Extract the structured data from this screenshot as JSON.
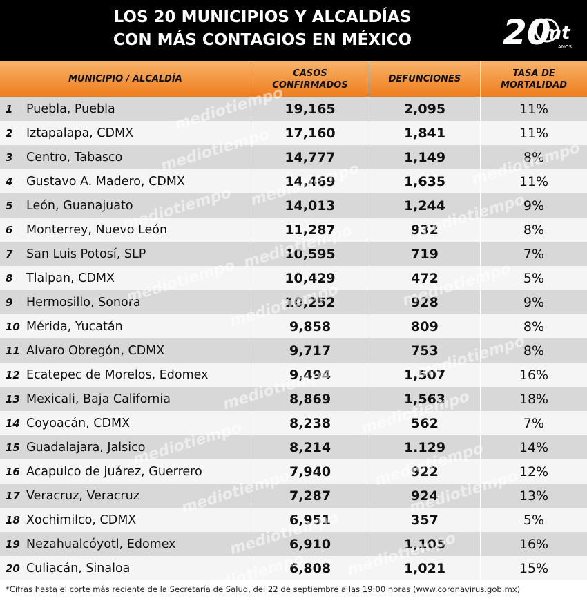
{
  "header": {
    "title_line1": "LOS 20 MUNICIPIOS Y ALCALDÍAS",
    "title_line2": "CON MÁS CONTAGIOS EN MÉXICO",
    "logo_text": "20",
    "logo_brand": "mt",
    "logo_sub": "AÑOS"
  },
  "watermark": "mediotiempo",
  "footnote": "*Cifras hasta el corte más reciente de la Secretaría de Salud, del 22 de septiembre a las 19:00 horas (www.coronavirus.gob.mx)",
  "chart_data": {
    "type": "table",
    "columns": [
      "MUNICIPIO / ALCALDÍA",
      "CASOS\nCONFIRMADOS",
      "DEFUNCIONES",
      "TASA DE\nMORTALIDAD"
    ],
    "rows": [
      {
        "rank": "1",
        "name": "Puebla, Puebla",
        "cases": "19,165",
        "deaths": "2,095",
        "rate": "11%"
      },
      {
        "rank": "2",
        "name": "Iztapalapa, CDMX",
        "cases": "17,160",
        "deaths": "1,841",
        "rate": "11%"
      },
      {
        "rank": "3",
        "name": "Centro, Tabasco",
        "cases": "14,777",
        "deaths": "1,149",
        "rate": "8%"
      },
      {
        "rank": "4",
        "name": "Gustavo A. Madero, CDMX",
        "cases": "14,469",
        "deaths": "1,635",
        "rate": "11%"
      },
      {
        "rank": "5",
        "name": "León, Guanajuato",
        "cases": "14,013",
        "deaths": "1,244",
        "rate": "9%"
      },
      {
        "rank": "6",
        "name": "Monterrey, Nuevo León",
        "cases": "11,287",
        "deaths": "932",
        "rate": "8%"
      },
      {
        "rank": "7",
        "name": "San Luis Potosí, SLP",
        "cases": "10,595",
        "deaths": "719",
        "rate": "7%"
      },
      {
        "rank": "8",
        "name": "Tlalpan, CDMX",
        "cases": "10,429",
        "deaths": "472",
        "rate": "5%"
      },
      {
        "rank": "9",
        "name": "Hermosillo, Sonora",
        "cases": "10,252",
        "deaths": "928",
        "rate": "9%"
      },
      {
        "rank": "10",
        "name": "Mérida, Yucatán",
        "cases": "9,858",
        "deaths": "809",
        "rate": "8%"
      },
      {
        "rank": "11",
        "name": "Alvaro Obregón, CDMX",
        "cases": "9,717",
        "deaths": "753",
        "rate": "8%"
      },
      {
        "rank": "12",
        "name": "Ecatepec de Morelos, Edomex",
        "cases": "9,494",
        "deaths": "1,507",
        "rate": "16%"
      },
      {
        "rank": "13",
        "name": "Mexicali, Baja California",
        "cases": "8,869",
        "deaths": "1,563",
        "rate": "18%"
      },
      {
        "rank": "14",
        "name": "Coyoacán, CDMX",
        "cases": "8,238",
        "deaths": "562",
        "rate": "7%"
      },
      {
        "rank": "15",
        "name": "Guadalajara, Jalsico",
        "cases": "8,214",
        "deaths": "1.129",
        "rate": "14%"
      },
      {
        "rank": "16",
        "name": "Acapulco de Juárez, Guerrero",
        "cases": "7,940",
        "deaths": "922",
        "rate": "12%"
      },
      {
        "rank": "17",
        "name": "Veracruz, Veracruz",
        "cases": "7,287",
        "deaths": "924",
        "rate": "13%"
      },
      {
        "rank": "18",
        "name": "Xochimilco, CDMX",
        "cases": "6,951",
        "deaths": "357",
        "rate": "5%"
      },
      {
        "rank": "19",
        "name": "Nezahualcóyotl, Edomex",
        "cases": "6,910",
        "deaths": "1,105",
        "rate": "16%"
      },
      {
        "rank": "20",
        "name": "Culiacán, Sinaloa",
        "cases": "6,808",
        "deaths": "1,021",
        "rate": "15%"
      }
    ]
  }
}
